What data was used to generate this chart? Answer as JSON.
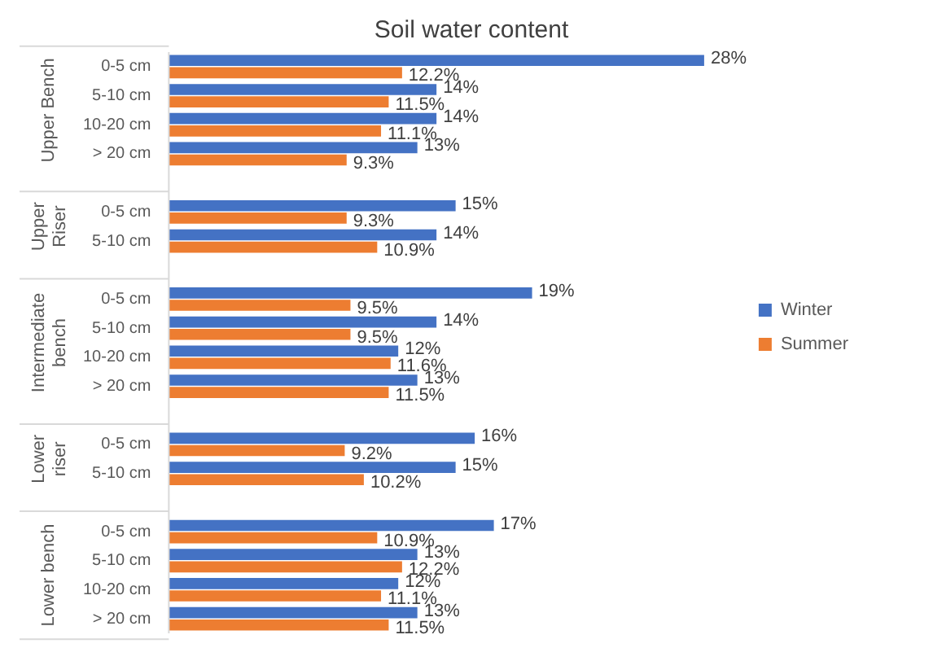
{
  "chart_data": {
    "type": "bar",
    "orientation": "horizontal",
    "title": "Soil water content",
    "categories": [
      "0-5 cm",
      "5-10 cm",
      "10-20 cm",
      "> 20 cm",
      null,
      "0-5 cm",
      "5-10 cm",
      null,
      "0-5 cm",
      "5-10 cm",
      "10-20 cm",
      "> 20 cm",
      null,
      "0-5 cm",
      "5-10 cm",
      null,
      "0-5 cm",
      "5-10 cm",
      "10-20 cm",
      "> 20 cm"
    ],
    "series": [
      {
        "name": "Winter",
        "color": "#4472c4",
        "values": [
          28,
          14,
          14,
          13,
          null,
          15,
          14,
          null,
          19,
          14,
          12,
          13,
          null,
          16,
          15,
          null,
          17,
          13,
          12,
          13
        ],
        "value_labels": [
          "28%",
          "14%",
          "14%",
          "13%",
          null,
          "15%",
          "14%",
          null,
          "19%",
          "14%",
          "12%",
          "13%",
          null,
          "16%",
          "15%",
          null,
          "17%",
          "13%",
          "12%",
          "13%"
        ]
      },
      {
        "name": "Summer",
        "color": "#ed7d31",
        "values": [
          12.2,
          11.5,
          11.1,
          9.3,
          null,
          9.3,
          10.9,
          null,
          9.5,
          9.5,
          11.6,
          11.5,
          null,
          9.2,
          10.2,
          null,
          10.9,
          12.2,
          11.1,
          11.5
        ],
        "value_labels": [
          "12.2%",
          "11.5%",
          "11.1%",
          "9.3%",
          null,
          "9.3%",
          "10.9%",
          null,
          "9.5%",
          "9.5%",
          "11.6%",
          "11.5%",
          null,
          "9.2%",
          "10.2%",
          null,
          "10.9%",
          "12.2%",
          "11.1%",
          "11.5%"
        ]
      }
    ],
    "annotations": [
      "Upper Bench",
      "Upper Riser",
      "Intermediate bench",
      "Lower riser",
      "Lower bench"
    ],
    "legend": "right"
  }
}
